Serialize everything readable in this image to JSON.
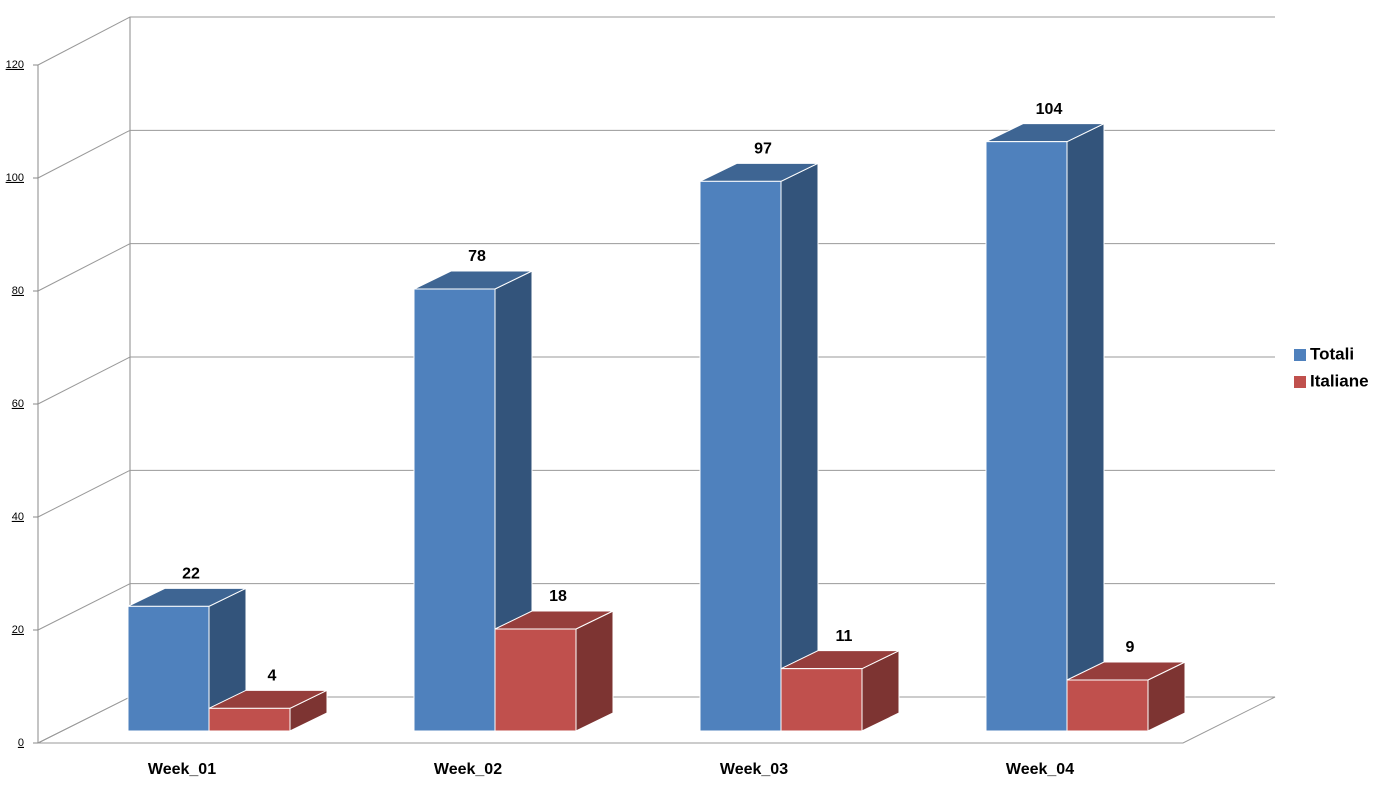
{
  "chart_data": {
    "type": "bar3d",
    "categories": [
      "Week_01",
      "Week_02",
      "Week_03",
      "Week_04"
    ],
    "series": [
      {
        "name": "Totali",
        "color": "#4f81bd",
        "values": [
          22,
          78,
          97,
          104
        ]
      },
      {
        "name": "Italiane",
        "color": "#c0504d",
        "values": [
          4,
          18,
          11,
          9
        ]
      }
    ],
    "ylim": [
      0,
      120
    ],
    "yticks": [
      0,
      20,
      40,
      60,
      80,
      100,
      120
    ],
    "grid": true,
    "legend": "right"
  }
}
